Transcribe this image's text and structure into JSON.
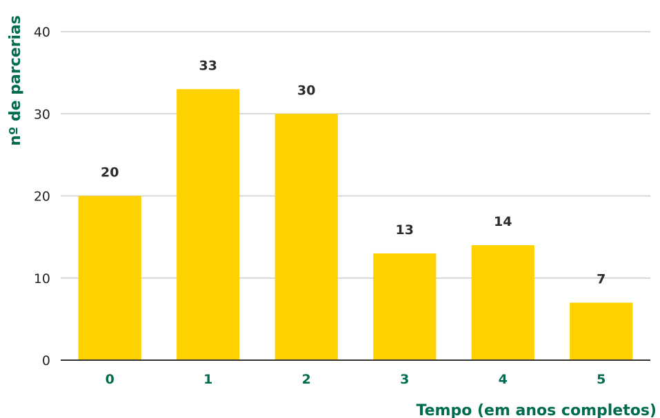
{
  "chart_data": {
    "type": "bar",
    "categories": [
      "0",
      "1",
      "2",
      "3",
      "4",
      "5"
    ],
    "values": [
      20,
      33,
      30,
      13,
      14,
      7
    ],
    "data_labels": [
      "20",
      "33",
      "30",
      "13",
      "14",
      "7"
    ],
    "xlabel": "Tempo (em anos completos)",
    "ylabel": "nº de parcerias",
    "ylim": [
      0,
      40
    ],
    "yticks": [
      0,
      10,
      20,
      30,
      40
    ],
    "ytick_labels": [
      "0",
      "10",
      "20",
      "30",
      "40"
    ],
    "grid": true,
    "legend": "none"
  },
  "colors": {
    "bar": "#FFD100",
    "accent": "#006B4F",
    "grid": "#cccccc",
    "axis": "#333333"
  }
}
